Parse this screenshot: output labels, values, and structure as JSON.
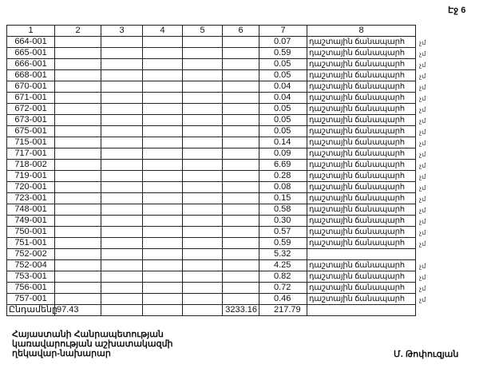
{
  "page_label": "Էջ 6",
  "headers": [
    "1",
    "2",
    "3",
    "4",
    "5",
    "6",
    "7",
    "8"
  ],
  "rows": [
    [
      "664-001",
      "0.07",
      "դաշտային ճանապարհ"
    ],
    [
      "665-001",
      "0.59",
      "դաշտային ճանապարհ"
    ],
    [
      "666-001",
      "0.05",
      "դաշտային ճանապարհ"
    ],
    [
      "668-001",
      "0.05",
      "դաշտային ճանապարհ"
    ],
    [
      "670-001",
      "0.04",
      "դաշտային ճանապարհ"
    ],
    [
      "671-001",
      "0.04",
      "դաշտային ճանապարհ"
    ],
    [
      "672-001",
      "0.05",
      "դաշտային ճանապարհ"
    ],
    [
      "673-001",
      "0.05",
      "դաշտային ճանապարհ"
    ],
    [
      "675-001",
      "0.05",
      "դաշտային ճանապարհ"
    ],
    [
      "715-001",
      "0.14",
      "դաշտային ճանապարհ"
    ],
    [
      "717-001",
      "0.09",
      "դաշտային ճանապարհ"
    ],
    [
      "718-002",
      "6.69",
      "դաշտային ճանապարհ"
    ],
    [
      "719-001",
      "0.28",
      "դաշտային ճանապարհ"
    ],
    [
      "720-001",
      "0.08",
      "դաշտային ճանապարհ"
    ],
    [
      "723-001",
      "0.15",
      "դաշտային ճանապարհ"
    ],
    [
      "748-001",
      "0.58",
      "դաշտային ճանապարհ"
    ],
    [
      "749-001",
      "0.30",
      "դաշտային ճանապարհ"
    ],
    [
      "750-001",
      "0.57",
      "դաշտային ճանապարհ"
    ],
    [
      "751-001",
      "0.59",
      "դաշտային ճանապարհ"
    ],
    [
      "752-002",
      "5.32",
      ""
    ],
    [
      "752-004",
      "4.25",
      "դաշտային ճանապարհ"
    ],
    [
      "753-001",
      "0.82",
      "դաշտային ճանապարհ"
    ],
    [
      "756-001",
      "0.72",
      "դաշտային ճանապարհ"
    ],
    [
      "757-001",
      "0.46",
      "դաշտային ճանապարհ"
    ]
  ],
  "margin_mark": "չմ",
  "total": {
    "label": "Ընդամենը",
    "col2": "97.43",
    "col6": "3233.16",
    "col7": "217.79"
  },
  "footer": {
    "line1": "Հայաստանի Հանրապետության",
    "line2": "կառավարության աշխատակազմի",
    "line3": "ղեկավար-նախարար",
    "signer": "Մ. Թոփուզյան"
  }
}
